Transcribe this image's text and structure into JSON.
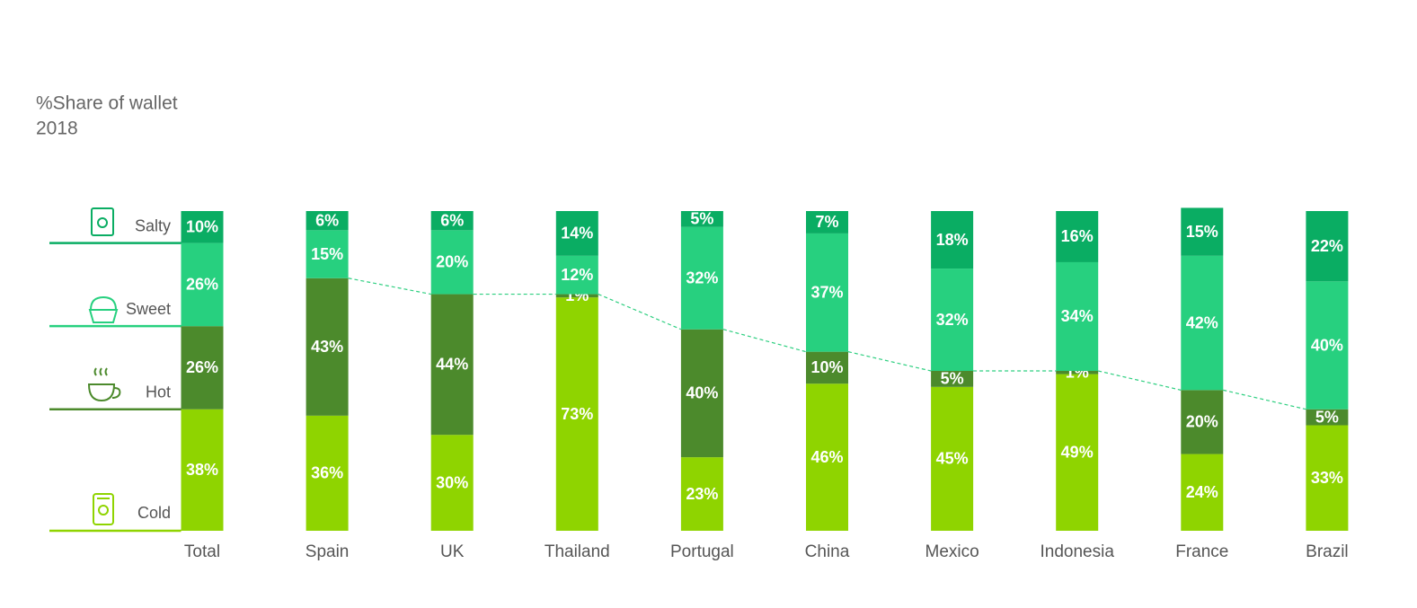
{
  "chart_data": {
    "type": "stacked_bar",
    "title": "%Share of wallet",
    "subtitle": "2018",
    "categories": [
      "Total",
      "Spain",
      "UK",
      "Thailand",
      "Portugal",
      "China",
      "Mexico",
      "Indonesia",
      "France",
      "Brazil"
    ],
    "ylim": [
      0,
      100
    ],
    "series": [
      {
        "name": "Cold",
        "color": "#8fd400",
        "values": [
          38,
          36,
          30,
          73,
          23,
          46,
          45,
          49,
          24,
          33
        ],
        "value_labels": [
          "38%",
          "36%",
          "30%",
          "73%",
          "23%",
          "46%",
          "45%",
          "49%",
          "24%",
          "33%"
        ]
      },
      {
        "name": "Hot",
        "color": "#4c8a2c",
        "values": [
          26,
          43,
          44,
          1,
          40,
          10,
          5,
          1,
          20,
          5
        ],
        "value_labels": [
          "26%",
          "43%",
          "44%",
          "1%",
          "40%",
          "10%",
          "5%",
          "1%",
          "20%",
          "5%"
        ]
      },
      {
        "name": "Sweet",
        "color": "#27d07f",
        "values": [
          26,
          15,
          20,
          12,
          32,
          37,
          32,
          34,
          42,
          40
        ],
        "value_labels": [
          "26%",
          "15%",
          "20%",
          "12%",
          "32%",
          "37%",
          "32%",
          "34%",
          "42%",
          "40%"
        ]
      },
      {
        "name": "Salty",
        "color": "#0aad63",
        "values": [
          10,
          6,
          6,
          14,
          5,
          7,
          18,
          16,
          15,
          22
        ],
        "value_labels": [
          "10%",
          "6%",
          "6%",
          "14%",
          "5%",
          "7%",
          "18%",
          "16%",
          "15%",
          "22%"
        ]
      }
    ]
  }
}
